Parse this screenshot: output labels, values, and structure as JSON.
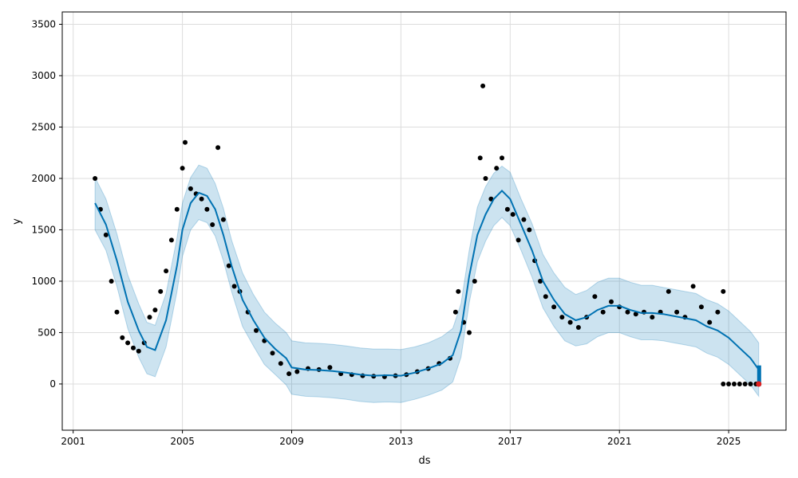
{
  "chart_data": {
    "type": "line",
    "title": "",
    "xlabel": "ds",
    "ylabel": "y",
    "xlim": [
      2000.6,
      2027.1
    ],
    "ylim": [
      -450,
      3620
    ],
    "x_ticks": [
      2001,
      2005,
      2009,
      2013,
      2017,
      2021,
      2025
    ],
    "x_tick_labels": [
      "2001",
      "2005",
      "2009",
      "2013",
      "2017",
      "2021",
      "2025"
    ],
    "y_ticks": [
      0,
      500,
      1000,
      1500,
      2000,
      2500,
      3000,
      3500
    ],
    "y_tick_labels": [
      "0",
      "500",
      "1000",
      "1500",
      "2000",
      "2500",
      "3000",
      "3500"
    ],
    "grid": true,
    "colors": {
      "forecast": "#0072B2",
      "band": "#0072B2",
      "observed": "#000000",
      "highlight": "#e02020",
      "grid": "#dddddd"
    },
    "forecast": {
      "x": [
        2001.8,
        2002.2,
        2002.6,
        2003.0,
        2003.4,
        2003.7,
        2004.0,
        2004.4,
        2004.8,
        2005.0,
        2005.3,
        2005.6,
        2005.9,
        2006.2,
        2006.5,
        2006.8,
        2007.2,
        2007.6,
        2008.0,
        2008.4,
        2008.8,
        2009.0,
        2009.5,
        2010.0,
        2010.5,
        2011.0,
        2011.5,
        2012.0,
        2012.5,
        2013.0,
        2013.5,
        2014.0,
        2014.5,
        2014.9,
        2015.2,
        2015.5,
        2015.8,
        2016.1,
        2016.4,
        2016.7,
        2017.0,
        2017.4,
        2017.8,
        2018.2,
        2018.6,
        2019.0,
        2019.4,
        2019.8,
        2020.2,
        2020.6,
        2021.0,
        2021.4,
        2021.8,
        2022.2,
        2022.6,
        2023.0,
        2023.4,
        2023.8,
        2024.2,
        2024.6,
        2025.0,
        2025.4,
        2025.8,
        2026.1
      ],
      "yhat": [
        1760,
        1550,
        1200,
        800,
        520,
        360,
        330,
        620,
        1150,
        1500,
        1760,
        1860,
        1830,
        1700,
        1450,
        1150,
        820,
        620,
        450,
        340,
        250,
        160,
        140,
        135,
        125,
        110,
        90,
        80,
        85,
        80,
        110,
        150,
        200,
        280,
        520,
        1050,
        1450,
        1650,
        1800,
        1880,
        1800,
        1550,
        1300,
        1000,
        820,
        680,
        620,
        650,
        720,
        760,
        760,
        720,
        690,
        690,
        680,
        660,
        640,
        620,
        560,
        520,
        450,
        350,
        250,
        140
      ],
      "upper": [
        2010,
        1800,
        1460,
        1060,
        780,
        600,
        570,
        880,
        1420,
        1760,
        2010,
        2130,
        2100,
        1950,
        1710,
        1400,
        1080,
        870,
        700,
        590,
        500,
        420,
        400,
        395,
        385,
        370,
        350,
        340,
        340,
        335,
        360,
        400,
        460,
        540,
        780,
        1300,
        1720,
        1920,
        2050,
        2120,
        2060,
        1800,
        1560,
        1260,
        1080,
        940,
        870,
        910,
        990,
        1030,
        1030,
        990,
        960,
        960,
        940,
        920,
        900,
        880,
        820,
        780,
        710,
        610,
        510,
        400
      ],
      "lower": [
        1500,
        1300,
        950,
        540,
        260,
        100,
        70,
        360,
        900,
        1240,
        1500,
        1600,
        1570,
        1440,
        1200,
        900,
        560,
        370,
        190,
        90,
        -10,
        -100,
        -120,
        -125,
        -135,
        -150,
        -170,
        -180,
        -175,
        -180,
        -150,
        -110,
        -60,
        20,
        260,
        790,
        1190,
        1390,
        1540,
        1620,
        1540,
        1300,
        1040,
        740,
        560,
        420,
        370,
        390,
        460,
        500,
        500,
        460,
        430,
        430,
        420,
        400,
        380,
        360,
        300,
        260,
        190,
        90,
        -10,
        -120
      ]
    },
    "observed": {
      "x": [
        2001.8,
        2002.0,
        2002.2,
        2002.4,
        2002.6,
        2002.8,
        2003.0,
        2003.2,
        2003.4,
        2003.6,
        2003.8,
        2004.0,
        2004.2,
        2004.4,
        2004.6,
        2004.8,
        2005.0,
        2005.1,
        2005.3,
        2005.5,
        2005.7,
        2005.9,
        2006.1,
        2006.3,
        2006.5,
        2006.7,
        2006.9,
        2007.1,
        2007.4,
        2007.7,
        2008.0,
        2008.3,
        2008.6,
        2008.9,
        2009.2,
        2009.6,
        2010.0,
        2010.4,
        2010.8,
        2011.2,
        2011.6,
        2012.0,
        2012.4,
        2012.8,
        2013.2,
        2013.6,
        2014.0,
        2014.4,
        2014.8,
        2015.0,
        2015.1,
        2015.3,
        2015.5,
        2015.7,
        2015.9,
        2016.0,
        2016.1,
        2016.3,
        2016.5,
        2016.7,
        2016.9,
        2017.1,
        2017.3,
        2017.5,
        2017.7,
        2017.9,
        2018.1,
        2018.3,
        2018.6,
        2018.9,
        2019.2,
        2019.5,
        2019.8,
        2020.1,
        2020.4,
        2020.7,
        2021.0,
        2021.3,
        2021.6,
        2021.9,
        2022.2,
        2022.5,
        2022.8,
        2023.1,
        2023.4,
        2023.7,
        2024.0,
        2024.3,
        2024.6,
        2024.8
      ],
      "y": [
        2000,
        1700,
        1450,
        1000,
        700,
        450,
        400,
        350,
        320,
        400,
        650,
        720,
        900,
        1100,
        1400,
        1700,
        2100,
        2350,
        1900,
        1850,
        1800,
        1700,
        1550,
        2300,
        1600,
        1150,
        950,
        900,
        700,
        520,
        420,
        300,
        200,
        100,
        120,
        150,
        140,
        160,
        100,
        90,
        80,
        75,
        70,
        80,
        90,
        120,
        150,
        200,
        250,
        700,
        900,
        600,
        500,
        1000,
        2200,
        2900,
        2000,
        1800,
        2100,
        2200,
        1700,
        1650,
        1400,
        1600,
        1500,
        1200,
        1000,
        850,
        750,
        650,
        600,
        550,
        650,
        850,
        700,
        800,
        750,
        700,
        680,
        700,
        650,
        700,
        900,
        700,
        650,
        950,
        750,
        600,
        700,
        900
      ],
      "tail_x": [
        2024.8,
        2025.0,
        2025.2,
        2025.4,
        2025.6,
        2025.8,
        2026.0,
        2026.1
      ],
      "tail_y": [
        0,
        0,
        0,
        0,
        0,
        0,
        0,
        0
      ],
      "highlight_x": 2026.1,
      "highlight_y": 0
    }
  }
}
